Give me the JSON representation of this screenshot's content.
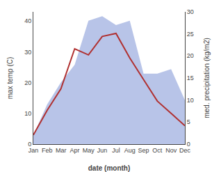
{
  "chart_data": {
    "type": "line",
    "xlabel": "date (month)",
    "ylabel": "max temp (C)",
    "y2label": "med. precipitation (kg/m2)",
    "categories": [
      "Jan",
      "Feb",
      "Mar",
      "Apr",
      "May",
      "Jun",
      "Jul",
      "Aug",
      "Sep",
      "Oct",
      "Nov",
      "Dec"
    ],
    "series": [
      {
        "type": "area",
        "axis": "y2",
        "color": "#b8c4e8",
        "values": [
          2,
          9,
          14,
          18,
          28,
          29,
          27,
          28,
          16,
          16,
          17,
          10
        ]
      },
      {
        "type": "line",
        "color": "#b03030",
        "values": [
          3,
          11,
          18,
          31,
          29,
          35,
          36,
          28,
          21,
          14,
          10,
          6
        ]
      }
    ],
    "ylim": [
      0,
      43
    ],
    "yticks": [
      0,
      10,
      20,
      30,
      40
    ],
    "y2lim": [
      0,
      30
    ],
    "y2ticks": [
      0,
      5,
      10,
      15,
      20,
      25,
      30
    ],
    "grid": false
  }
}
